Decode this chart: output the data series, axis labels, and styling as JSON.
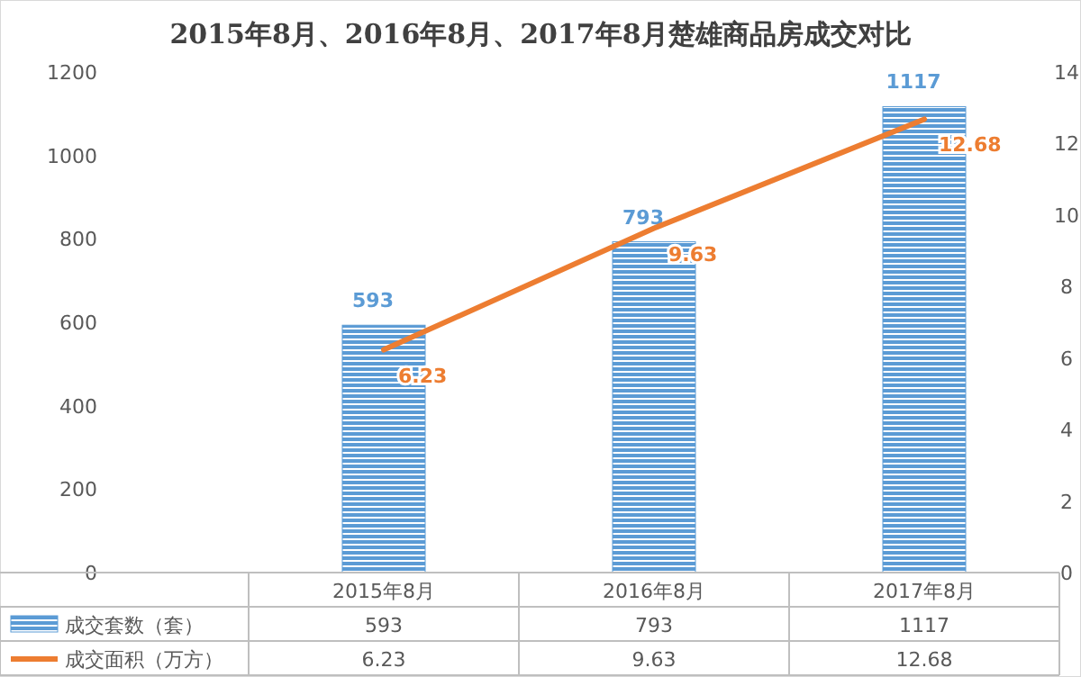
{
  "chart_data": {
    "type": "bar",
    "title": "2015年8月、2016年8月、2017年8月楚雄商品房成交对比",
    "categories": [
      "2015年8月",
      "2016年8月",
      "2017年8月"
    ],
    "series": [
      {
        "name": "成交套数（套）",
        "color": "#5b9bd5",
        "values": [
          593,
          793,
          1117
        ],
        "value_labels": [
          "593",
          "793",
          "1117"
        ]
      },
      {
        "name": "成交面积（万方）",
        "type": "line",
        "axis": "y2",
        "color": "#ed7d31",
        "values": [
          6.23,
          9.63,
          12.68
        ],
        "value_labels": [
          "6.23",
          "9.63",
          "12.68"
        ]
      }
    ],
    "ylim": [
      0,
      1200
    ],
    "yticks": [
      0,
      200,
      400,
      600,
      800,
      1000,
      1200
    ],
    "y2lim": [
      0,
      14
    ],
    "y2ticks": [
      0,
      2,
      4,
      6,
      8,
      10,
      12,
      14
    ],
    "annotations": [
      "593",
      "793",
      "1117",
      "6.23",
      "9.63",
      "12.68"
    ],
    "data_labels": true,
    "legend": "bottom",
    "grid": false
  }
}
